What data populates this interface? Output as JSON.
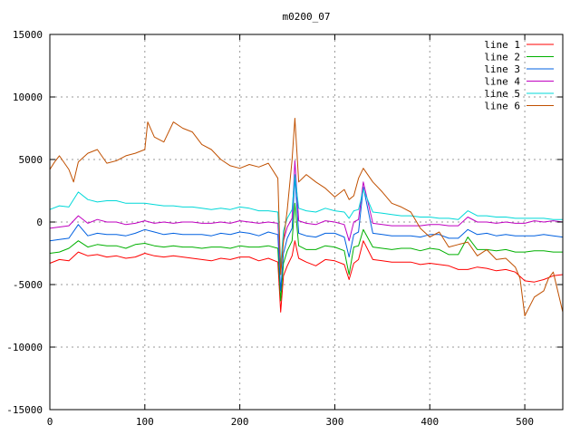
{
  "chart_data": {
    "type": "line",
    "title": "m0200_07",
    "xlabel": "",
    "ylabel": "",
    "xlim": [
      0,
      540
    ],
    "ylim": [
      -15000,
      15000
    ],
    "x_ticks": [
      0,
      100,
      200,
      300,
      400,
      500
    ],
    "y_ticks": [
      -15000,
      -10000,
      -5000,
      0,
      5000,
      10000,
      15000
    ],
    "grid": true,
    "legend_position": "top-right",
    "series": [
      {
        "name": "line 1",
        "color": "#ff0000",
        "x": [
          0,
          10,
          20,
          30,
          40,
          50,
          60,
          70,
          80,
          90,
          100,
          110,
          120,
          130,
          140,
          150,
          160,
          170,
          180,
          190,
          200,
          210,
          220,
          230,
          240,
          243,
          246,
          250,
          255,
          258,
          262,
          270,
          280,
          290,
          300,
          310,
          315,
          320,
          325,
          330,
          340,
          350,
          360,
          370,
          380,
          390,
          400,
          410,
          420,
          430,
          440,
          450,
          460,
          470,
          480,
          490,
          500,
          510,
          520,
          530,
          540
        ],
        "y": [
          -3300,
          -3000,
          -3100,
          -2400,
          -2700,
          -2600,
          -2800,
          -2700,
          -2900,
          -2800,
          -2500,
          -2700,
          -2800,
          -2700,
          -2800,
          -2900,
          -3000,
          -3100,
          -2900,
          -3000,
          -2800,
          -2800,
          -3100,
          -2900,
          -3200,
          -7200,
          -4300,
          -3500,
          -2700,
          -1500,
          -2900,
          -3200,
          -3500,
          -3000,
          -3100,
          -3400,
          -4600,
          -3300,
          -3000,
          -1500,
          -3000,
          -3100,
          -3200,
          -3200,
          -3200,
          -3400,
          -3300,
          -3400,
          -3500,
          -3800,
          -3800,
          -3600,
          -3700,
          -3900,
          -3800,
          -4000,
          -4700,
          -4800,
          -4600,
          -4300,
          -4200
        ]
      },
      {
        "name": "line 2",
        "color": "#00b000",
        "x": [
          0,
          10,
          20,
          30,
          40,
          50,
          60,
          70,
          80,
          90,
          100,
          110,
          120,
          130,
          140,
          150,
          160,
          170,
          180,
          190,
          200,
          210,
          220,
          230,
          240,
          243,
          246,
          250,
          255,
          258,
          262,
          270,
          280,
          290,
          300,
          310,
          315,
          320,
          325,
          330,
          340,
          350,
          360,
          370,
          380,
          390,
          400,
          410,
          420,
          430,
          440,
          450,
          460,
          470,
          480,
          490,
          500,
          510,
          520,
          530,
          540
        ],
        "y": [
          -2500,
          -2400,
          -2100,
          -1500,
          -2000,
          -1800,
          -1900,
          -1900,
          -2100,
          -1800,
          -1700,
          -1900,
          -2000,
          -1900,
          -2000,
          -2000,
          -2100,
          -2000,
          -2000,
          -2100,
          -1900,
          -2000,
          -2000,
          -1900,
          -2100,
          -6300,
          -3300,
          -2300,
          -1500,
          1500,
          -1900,
          -2200,
          -2200,
          -1900,
          -2000,
          -2300,
          -4200,
          -2000,
          -1900,
          -600,
          -2000,
          -2100,
          -2200,
          -2100,
          -2100,
          -2300,
          -2100,
          -2200,
          -2600,
          -2600,
          -1200,
          -2200,
          -2200,
          -2300,
          -2200,
          -2400,
          -2400,
          -2300,
          -2300,
          -2400,
          -2400
        ]
      },
      {
        "name": "line 3",
        "color": "#0060e0",
        "x": [
          0,
          10,
          20,
          30,
          40,
          50,
          60,
          70,
          80,
          90,
          100,
          110,
          120,
          130,
          140,
          150,
          160,
          170,
          180,
          190,
          200,
          210,
          220,
          230,
          240,
          243,
          246,
          250,
          255,
          258,
          262,
          270,
          280,
          290,
          300,
          310,
          315,
          320,
          325,
          330,
          340,
          350,
          360,
          370,
          380,
          390,
          400,
          410,
          420,
          430,
          440,
          450,
          460,
          470,
          480,
          490,
          500,
          510,
          520,
          530,
          540
        ],
        "y": [
          -1500,
          -1400,
          -1300,
          -200,
          -1100,
          -900,
          -1000,
          -1000,
          -1100,
          -900,
          -600,
          -800,
          -1000,
          -900,
          -1000,
          -1000,
          -1000,
          -1100,
          -900,
          -1000,
          -800,
          -900,
          -1100,
          -800,
          -1000,
          -5500,
          -2500,
          -1300,
          -500,
          3600,
          -900,
          -1100,
          -1200,
          -900,
          -900,
          -1200,
          -2800,
          -1000,
          -800,
          2800,
          -900,
          -1000,
          -1100,
          -1100,
          -1100,
          -1200,
          -1000,
          -1000,
          -1300,
          -1300,
          -600,
          -1000,
          -900,
          -1100,
          -1000,
          -1100,
          -1100,
          -1100,
          -1000,
          -1100,
          -1200
        ]
      },
      {
        "name": "line 4",
        "color": "#c000c0",
        "x": [
          0,
          10,
          20,
          30,
          40,
          50,
          60,
          70,
          80,
          90,
          100,
          110,
          120,
          130,
          140,
          150,
          160,
          170,
          180,
          190,
          200,
          210,
          220,
          230,
          240,
          243,
          246,
          250,
          255,
          258,
          262,
          270,
          280,
          290,
          300,
          310,
          315,
          320,
          325,
          330,
          340,
          350,
          360,
          370,
          380,
          390,
          400,
          410,
          420,
          430,
          440,
          450,
          460,
          470,
          480,
          490,
          500,
          510,
          520,
          530,
          540
        ],
        "y": [
          -500,
          -400,
          -300,
          500,
          -100,
          200,
          0,
          0,
          -200,
          -100,
          100,
          -100,
          0,
          -100,
          0,
          0,
          -100,
          -100,
          0,
          -100,
          100,
          0,
          -100,
          0,
          -100,
          -4000,
          -1500,
          -400,
          300,
          4900,
          100,
          -100,
          -200,
          100,
          0,
          -200,
          -1500,
          0,
          200,
          3200,
          -100,
          -200,
          -300,
          -300,
          -300,
          -300,
          -200,
          -200,
          -300,
          -300,
          400,
          0,
          0,
          -100,
          0,
          -100,
          -100,
          100,
          0,
          100,
          0
        ]
      },
      {
        "name": "line 5",
        "color": "#00d8d8",
        "x": [
          0,
          10,
          20,
          30,
          40,
          50,
          60,
          70,
          80,
          90,
          100,
          110,
          120,
          130,
          140,
          150,
          160,
          170,
          180,
          190,
          200,
          210,
          220,
          230,
          240,
          243,
          246,
          250,
          255,
          258,
          262,
          270,
          280,
          290,
          300,
          310,
          315,
          320,
          325,
          330,
          340,
          350,
          360,
          370,
          380,
          390,
          400,
          410,
          420,
          430,
          440,
          450,
          460,
          470,
          480,
          490,
          500,
          510,
          520,
          530,
          540
        ],
        "y": [
          1000,
          1300,
          1200,
          2400,
          1800,
          1600,
          1700,
          1700,
          1500,
          1500,
          1500,
          1400,
          1300,
          1300,
          1200,
          1200,
          1100,
          1000,
          1100,
          1000,
          1200,
          1100,
          900,
          900,
          800,
          -3500,
          -700,
          300,
          1000,
          3800,
          1100,
          900,
          800,
          1100,
          900,
          800,
          300,
          900,
          1000,
          2600,
          800,
          700,
          600,
          500,
          500,
          400,
          400,
          300,
          300,
          200,
          900,
          500,
          500,
          400,
          400,
          300,
          300,
          300,
          300,
          200,
          200
        ]
      },
      {
        "name": "line 6",
        "color": "#c05000",
        "x": [
          0,
          5,
          10,
          20,
          25,
          30,
          40,
          50,
          60,
          70,
          80,
          90,
          100,
          103,
          110,
          120,
          130,
          140,
          150,
          160,
          170,
          180,
          190,
          200,
          210,
          220,
          230,
          240,
          243,
          246,
          250,
          255,
          258,
          262,
          270,
          280,
          290,
          300,
          310,
          315,
          320,
          325,
          330,
          340,
          350,
          360,
          370,
          380,
          390,
          400,
          410,
          420,
          430,
          440,
          450,
          460,
          470,
          480,
          490,
          495,
          500,
          510,
          520,
          525,
          530,
          540
        ],
        "y": [
          4200,
          4800,
          5300,
          4200,
          3200,
          4800,
          5500,
          5800,
          4700,
          4900,
          5300,
          5500,
          5800,
          8000,
          6800,
          6400,
          8000,
          7500,
          7200,
          6200,
          5800,
          5000,
          4500,
          4300,
          4600,
          4400,
          4700,
          3500,
          -4200,
          -1500,
          1000,
          5000,
          8300,
          3200,
          3800,
          3200,
          2700,
          2000,
          2600,
          1800,
          2100,
          3500,
          4300,
          3200,
          2400,
          1500,
          1200,
          800,
          -500,
          -1200,
          -800,
          -2000,
          -1800,
          -1600,
          -2700,
          -2200,
          -3000,
          -2900,
          -3600,
          -4500,
          -7500,
          -6000,
          -5500,
          -4500,
          -4000,
          -7200
        ]
      }
    ]
  }
}
